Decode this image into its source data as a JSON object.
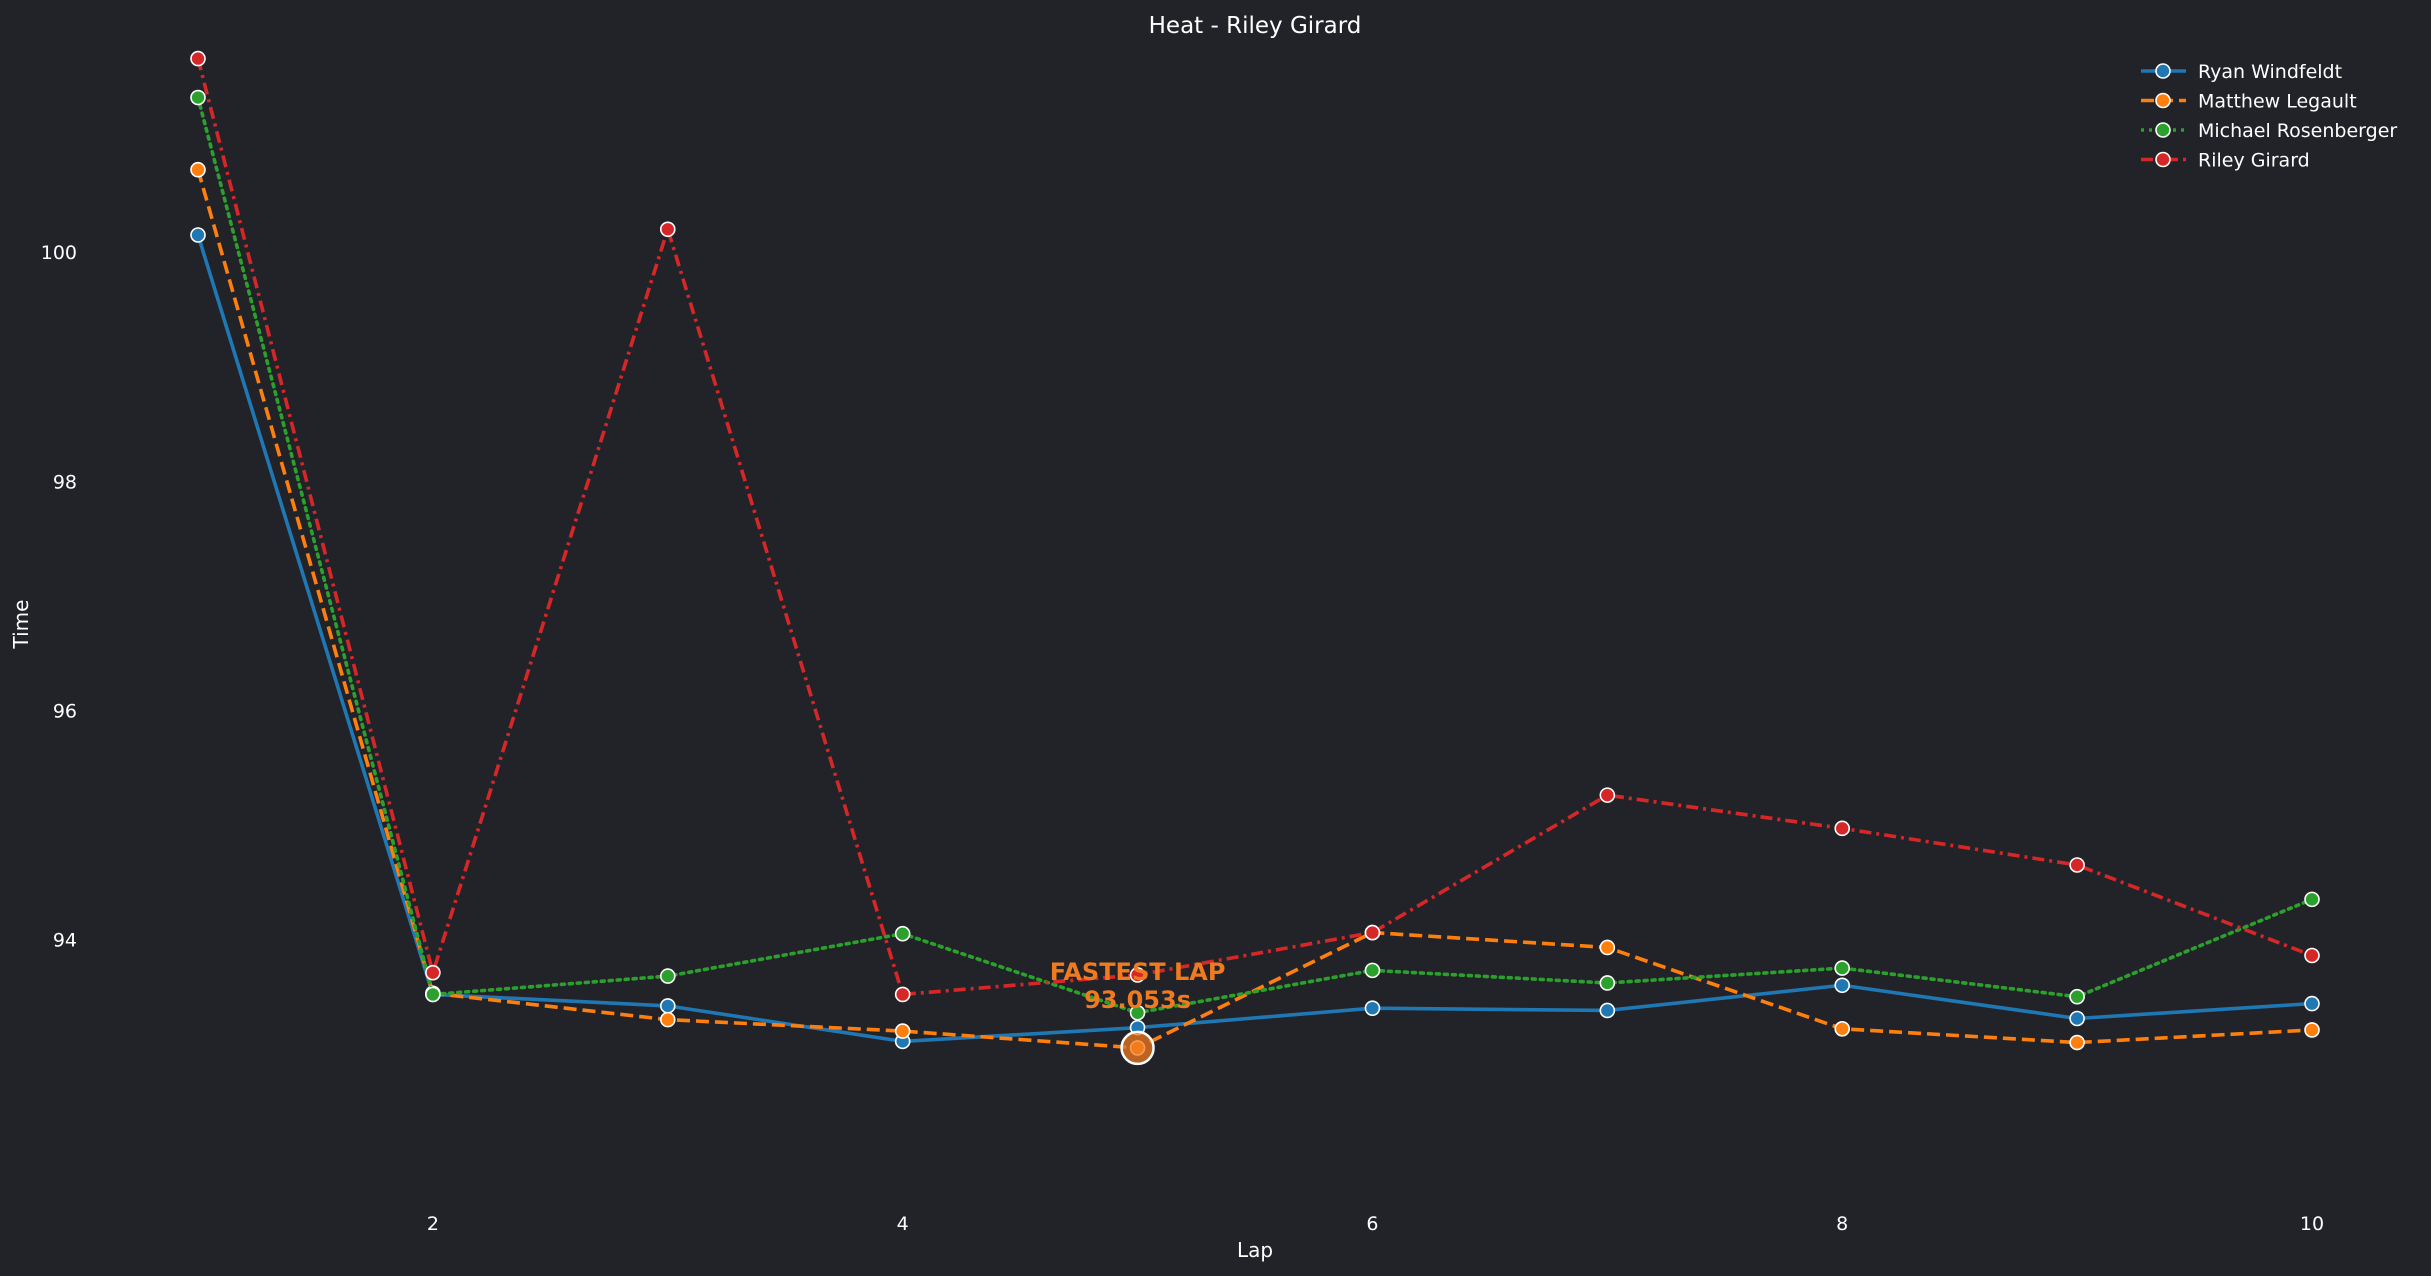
{
  "chart_data": {
    "type": "line",
    "title": "Heat - Riley Girard",
    "xlabel": "Lap",
    "ylabel": "Time",
    "xlim": [
      1,
      10
    ],
    "ylim": [
      91.9,
      101.8
    ],
    "x_ticks": [
      2,
      4,
      6,
      8,
      10
    ],
    "y_ticks": [
      94,
      96,
      98,
      100
    ],
    "grid": false,
    "legend_position": "top-right",
    "x": [
      1,
      2,
      3,
      4,
      5,
      6,
      7,
      8,
      9,
      10
    ],
    "series": [
      {
        "name": "Ryan Windfeldt",
        "color": "#1f77b4",
        "dash": "solid",
        "values": [
          100.15,
          93.52,
          93.42,
          93.11,
          93.23,
          93.4,
          93.38,
          93.6,
          93.31,
          93.44
        ]
      },
      {
        "name": "Matthew Legault",
        "color": "#ff7f0e",
        "dash": "dashed",
        "values": [
          100.72,
          93.53,
          93.3,
          93.2,
          93.053,
          94.06,
          93.93,
          93.22,
          93.1,
          93.21
        ]
      },
      {
        "name": "Michael Rosenberger",
        "color": "#2ca02c",
        "dash": "dotted",
        "values": [
          101.35,
          93.52,
          93.68,
          94.05,
          93.36,
          93.73,
          93.62,
          93.75,
          93.5,
          94.35
        ]
      },
      {
        "name": "Riley Girard",
        "color": "#d62728",
        "dash": "dashdot",
        "values": [
          101.69,
          93.71,
          100.2,
          93.52,
          93.69,
          94.06,
          95.26,
          94.97,
          94.65,
          93.86
        ]
      }
    ],
    "annotation": {
      "line1": "FASTEST LAP",
      "line2": "93.053s",
      "x": 5,
      "y": 93.053,
      "color": "#f07a1f"
    }
  }
}
